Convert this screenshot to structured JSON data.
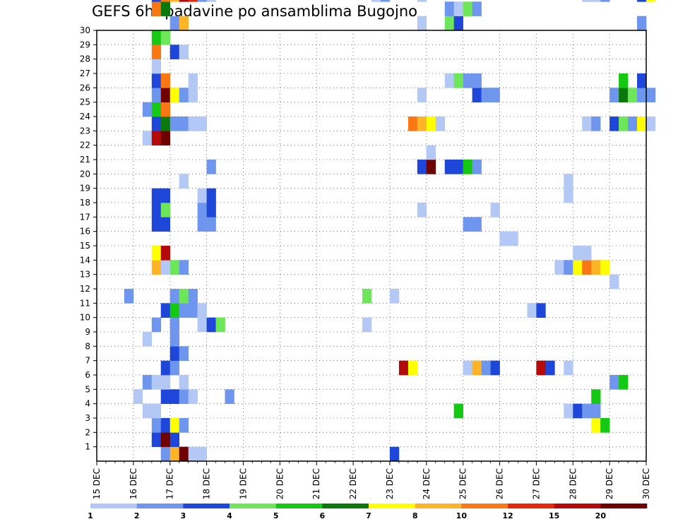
{
  "chart_data": {
    "type": "heatmap",
    "title": "GEFS 6hr padavine po ansamblima Bugojno",
    "xlabel": "",
    "ylabel": "",
    "x_tick_labels": [
      "15 DEC",
      "16 DEC",
      "17 DEC",
      "18 DEC",
      "19 DEC",
      "20 DEC",
      "21 DEC",
      "22 DEC",
      "23 DEC",
      "24 DEC",
      "25 DEC",
      "26 DEC",
      "27 DEC",
      "28 DEC",
      "29 DEC",
      "30 DEC"
    ],
    "y_tick_labels": [
      "1",
      "2",
      "3",
      "4",
      "5",
      "6",
      "7",
      "8",
      "9",
      "10",
      "11",
      "12",
      "13",
      "14",
      "15",
      "16",
      "17",
      "18",
      "19",
      "20",
      "21",
      "22",
      "23",
      "24",
      "25",
      "26",
      "27",
      "28",
      "29",
      "30"
    ],
    "grid": true,
    "colorbar": {
      "colors": [
        "#b4c8f5",
        "#6e96ee",
        "#1e46d8",
        "#6ee65a",
        "#14c814",
        "#0a780a",
        "#ffff00",
        "#ffb428",
        "#fa7814",
        "#e6280a",
        "#b40a0a",
        "#6e0000"
      ],
      "labels": [
        "1",
        "2",
        "3",
        "4",
        "5",
        "6",
        "7",
        "8",
        "10",
        "12",
        "15",
        "20"
      ]
    },
    "cells": [
      {
        "member": 0,
        "step": 7,
        "value": 2
      },
      {
        "member": 0,
        "step": 8,
        "value": 8
      },
      {
        "member": 0,
        "step": 9,
        "value": 20
      },
      {
        "member": 0,
        "step": 10,
        "value": 1
      },
      {
        "member": 0,
        "step": 11,
        "value": 1
      },
      {
        "member": 0,
        "step": 32,
        "value": 3
      },
      {
        "member": 1,
        "step": 6,
        "value": 3
      },
      {
        "member": 1,
        "step": 7,
        "value": 20
      },
      {
        "member": 1,
        "step": 8,
        "value": 3
      },
      {
        "member": 2,
        "step": 6,
        "value": 2
      },
      {
        "member": 2,
        "step": 7,
        "value": 3
      },
      {
        "member": 2,
        "step": 8,
        "value": 7
      },
      {
        "member": 2,
        "step": 9,
        "value": 2
      },
      {
        "member": 2,
        "step": 54,
        "value": 7
      },
      {
        "member": 2,
        "step": 55,
        "value": 5
      },
      {
        "member": 3,
        "step": 5,
        "value": 1
      },
      {
        "member": 3,
        "step": 6,
        "value": 1
      },
      {
        "member": 3,
        "step": 39,
        "value": 5
      },
      {
        "member": 3,
        "step": 51,
        "value": 1
      },
      {
        "member": 3,
        "step": 52,
        "value": 3
      },
      {
        "member": 3,
        "step": 53,
        "value": 2
      },
      {
        "member": 3,
        "step": 54,
        "value": 2
      },
      {
        "member": 4,
        "step": 4,
        "value": 1
      },
      {
        "member": 4,
        "step": 7,
        "value": 3
      },
      {
        "member": 4,
        "step": 8,
        "value": 3
      },
      {
        "member": 4,
        "step": 9,
        "value": 2
      },
      {
        "member": 4,
        "step": 10,
        "value": 1
      },
      {
        "member": 4,
        "step": 14,
        "value": 2
      },
      {
        "member": 4,
        "step": 54,
        "value": 5
      },
      {
        "member": 5,
        "step": 5,
        "value": 2
      },
      {
        "member": 5,
        "step": 6,
        "value": 1
      },
      {
        "member": 5,
        "step": 7,
        "value": 1
      },
      {
        "member": 5,
        "step": 9,
        "value": 1
      },
      {
        "member": 5,
        "step": 56,
        "value": 2
      },
      {
        "member": 5,
        "step": 57,
        "value": 5
      },
      {
        "member": 6,
        "step": 7,
        "value": 3
      },
      {
        "member": 6,
        "step": 8,
        "value": 2
      },
      {
        "member": 6,
        "step": 33,
        "value": 15
      },
      {
        "member": 6,
        "step": 34,
        "value": 7
      },
      {
        "member": 6,
        "step": 40,
        "value": 1
      },
      {
        "member": 6,
        "step": 41,
        "value": 8
      },
      {
        "member": 6,
        "step": 42,
        "value": 2
      },
      {
        "member": 6,
        "step": 43,
        "value": 3
      },
      {
        "member": 6,
        "step": 48,
        "value": 15
      },
      {
        "member": 6,
        "step": 49,
        "value": 3
      },
      {
        "member": 6,
        "step": 51,
        "value": 1
      },
      {
        "member": 7,
        "step": 8,
        "value": 3
      },
      {
        "member": 7,
        "step": 9,
        "value": 2
      },
      {
        "member": 8,
        "step": 5,
        "value": 1
      },
      {
        "member": 8,
        "step": 8,
        "value": 2
      },
      {
        "member": 9,
        "step": 6,
        "value": 2
      },
      {
        "member": 9,
        "step": 8,
        "value": 2
      },
      {
        "member": 9,
        "step": 11,
        "value": 1
      },
      {
        "member": 9,
        "step": 12,
        "value": 3
      },
      {
        "member": 9,
        "step": 13,
        "value": 4
      },
      {
        "member": 9,
        "step": 29,
        "value": 1
      },
      {
        "member": 10,
        "step": 7,
        "value": 3
      },
      {
        "member": 10,
        "step": 8,
        "value": 5
      },
      {
        "member": 10,
        "step": 9,
        "value": 2
      },
      {
        "member": 10,
        "step": 10,
        "value": 2
      },
      {
        "member": 10,
        "step": 11,
        "value": 1
      },
      {
        "member": 10,
        "step": 47,
        "value": 1
      },
      {
        "member": 10,
        "step": 48,
        "value": 3
      },
      {
        "member": 11,
        "step": 3,
        "value": 2
      },
      {
        "member": 11,
        "step": 8,
        "value": 2
      },
      {
        "member": 11,
        "step": 9,
        "value": 4
      },
      {
        "member": 11,
        "step": 10,
        "value": 2
      },
      {
        "member": 11,
        "step": 29,
        "value": 4
      },
      {
        "member": 11,
        "step": 32,
        "value": 1
      },
      {
        "member": 12,
        "step": 56,
        "value": 1
      },
      {
        "member": 13,
        "step": 6,
        "value": 8
      },
      {
        "member": 13,
        "step": 7,
        "value": 1
      },
      {
        "member": 13,
        "step": 8,
        "value": 4
      },
      {
        "member": 13,
        "step": 9,
        "value": 2
      },
      {
        "member": 13,
        "step": 50,
        "value": 1
      },
      {
        "member": 13,
        "step": 51,
        "value": 2
      },
      {
        "member": 13,
        "step": 52,
        "value": 7
      },
      {
        "member": 13,
        "step": 53,
        "value": 10
      },
      {
        "member": 13,
        "step": 54,
        "value": 8
      },
      {
        "member": 13,
        "step": 55,
        "value": 7
      },
      {
        "member": 14,
        "step": 6,
        "value": 7
      },
      {
        "member": 14,
        "step": 7,
        "value": 15
      },
      {
        "member": 14,
        "step": 52,
        "value": 1
      },
      {
        "member": 14,
        "step": 53,
        "value": 1
      },
      {
        "member": 15,
        "step": 44,
        "value": 1
      },
      {
        "member": 15,
        "step": 45,
        "value": 1
      },
      {
        "member": 16,
        "step": 6,
        "value": 3
      },
      {
        "member": 16,
        "step": 7,
        "value": 3
      },
      {
        "member": 16,
        "step": 11,
        "value": 2
      },
      {
        "member": 16,
        "step": 12,
        "value": 2
      },
      {
        "member": 16,
        "step": 40,
        "value": 2
      },
      {
        "member": 16,
        "step": 41,
        "value": 2
      },
      {
        "member": 17,
        "step": 6,
        "value": 3
      },
      {
        "member": 17,
        "step": 7,
        "value": 4
      },
      {
        "member": 17,
        "step": 11,
        "value": 2
      },
      {
        "member": 17,
        "step": 12,
        "value": 3
      },
      {
        "member": 17,
        "step": 35,
        "value": 1
      },
      {
        "member": 17,
        "step": 43,
        "value": 1
      },
      {
        "member": 18,
        "step": 6,
        "value": 3
      },
      {
        "member": 18,
        "step": 7,
        "value": 3
      },
      {
        "member": 18,
        "step": 11,
        "value": 1
      },
      {
        "member": 18,
        "step": 12,
        "value": 3
      },
      {
        "member": 18,
        "step": 51,
        "value": 1
      },
      {
        "member": 19,
        "step": 9,
        "value": 1
      },
      {
        "member": 19,
        "step": 51,
        "value": 1
      },
      {
        "member": 20,
        "step": 12,
        "value": 2
      },
      {
        "member": 20,
        "step": 35,
        "value": 3
      },
      {
        "member": 20,
        "step": 36,
        "value": 20
      },
      {
        "member": 20,
        "step": 38,
        "value": 3
      },
      {
        "member": 20,
        "step": 39,
        "value": 3
      },
      {
        "member": 20,
        "step": 40,
        "value": 5
      },
      {
        "member": 20,
        "step": 41,
        "value": 2
      },
      {
        "member": 21,
        "step": 36,
        "value": 1
      },
      {
        "member": 22,
        "step": 5,
        "value": 1
      },
      {
        "member": 22,
        "step": 6,
        "value": 15
      },
      {
        "member": 22,
        "step": 7,
        "value": 20
      },
      {
        "member": 23,
        "step": 6,
        "value": 3
      },
      {
        "member": 23,
        "step": 7,
        "value": 6
      },
      {
        "member": 23,
        "step": 8,
        "value": 2
      },
      {
        "member": 23,
        "step": 9,
        "value": 2
      },
      {
        "member": 23,
        "step": 10,
        "value": 1
      },
      {
        "member": 23,
        "step": 11,
        "value": 1
      },
      {
        "member": 23,
        "step": 34,
        "value": 10
      },
      {
        "member": 23,
        "step": 35,
        "value": 8
      },
      {
        "member": 23,
        "step": 36,
        "value": 7
      },
      {
        "member": 23,
        "step": 37,
        "value": 1
      },
      {
        "member": 23,
        "step": 53,
        "value": 1
      },
      {
        "member": 23,
        "step": 54,
        "value": 2
      },
      {
        "member": 23,
        "step": 56,
        "value": 3
      },
      {
        "member": 23,
        "step": 57,
        "value": 4
      },
      {
        "member": 23,
        "step": 58,
        "value": 2
      },
      {
        "member": 23,
        "step": 59,
        "value": 7
      },
      {
        "member": 23,
        "step": 60,
        "value": 1
      },
      {
        "member": 24,
        "step": 5,
        "value": 2
      },
      {
        "member": 24,
        "step": 6,
        "value": 5
      },
      {
        "member": 24,
        "step": 7,
        "value": 10
      },
      {
        "member": 25,
        "step": 6,
        "value": 2
      },
      {
        "member": 25,
        "step": 7,
        "value": 20
      },
      {
        "member": 25,
        "step": 8,
        "value": 7
      },
      {
        "member": 25,
        "step": 9,
        "value": 2
      },
      {
        "member": 25,
        "step": 10,
        "value": 1
      },
      {
        "member": 25,
        "step": 35,
        "value": 1
      },
      {
        "member": 25,
        "step": 41,
        "value": 3
      },
      {
        "member": 25,
        "step": 42,
        "value": 2
      },
      {
        "member": 25,
        "step": 43,
        "value": 2
      },
      {
        "member": 25,
        "step": 56,
        "value": 2
      },
      {
        "member": 25,
        "step": 57,
        "value": 6
      },
      {
        "member": 25,
        "step": 58,
        "value": 4
      },
      {
        "member": 25,
        "step": 59,
        "value": 2
      },
      {
        "member": 25,
        "step": 60,
        "value": 2
      },
      {
        "member": 26,
        "step": 6,
        "value": 3
      },
      {
        "member": 26,
        "step": 7,
        "value": 10
      },
      {
        "member": 26,
        "step": 10,
        "value": 1
      },
      {
        "member": 26,
        "step": 38,
        "value": 1
      },
      {
        "member": 26,
        "step": 39,
        "value": 4
      },
      {
        "member": 26,
        "step": 40,
        "value": 2
      },
      {
        "member": 26,
        "step": 41,
        "value": 2
      },
      {
        "member": 26,
        "step": 57,
        "value": 5
      },
      {
        "member": 26,
        "step": 59,
        "value": 3
      },
      {
        "member": 27,
        "step": 6,
        "value": 1
      },
      {
        "member": 28,
        "step": 6,
        "value": 10
      },
      {
        "member": 28,
        "step": 8,
        "value": 3
      },
      {
        "member": 28,
        "step": 9,
        "value": 1
      },
      {
        "member": 29,
        "step": 6,
        "value": 5
      },
      {
        "member": 29,
        "step": 7,
        "value": 4
      },
      {
        "member": 30,
        "step": 8,
        "value": 2
      },
      {
        "member": 30,
        "step": 9,
        "value": 8
      },
      {
        "member": 30,
        "step": 35,
        "value": 1
      },
      {
        "member": 30,
        "step": 38,
        "value": 4
      },
      {
        "member": 30,
        "step": 39,
        "value": 3
      },
      {
        "member": 30,
        "step": 59,
        "value": 2
      },
      {
        "member": 31,
        "step": 6,
        "value": 10
      },
      {
        "member": 31,
        "step": 7,
        "value": 6
      },
      {
        "member": 31,
        "step": 38,
        "value": 2
      },
      {
        "member": 31,
        "step": 39,
        "value": 1
      },
      {
        "member": 31,
        "step": 40,
        "value": 4
      },
      {
        "member": 31,
        "step": 41,
        "value": 2
      },
      {
        "member": 32,
        "step": 6,
        "value": 3
      },
      {
        "member": 32,
        "step": 7,
        "value": 10
      },
      {
        "member": 32,
        "step": 8,
        "value": 8
      },
      {
        "member": 32,
        "step": 9,
        "value": 15
      },
      {
        "member": 32,
        "step": 10,
        "value": 12
      },
      {
        "member": 32,
        "step": 11,
        "value": 2
      },
      {
        "member": 32,
        "step": 12,
        "value": 1
      },
      {
        "member": 32,
        "step": 30,
        "value": 1
      },
      {
        "member": 32,
        "step": 31,
        "value": 2
      },
      {
        "member": 32,
        "step": 35,
        "value": 1
      },
      {
        "member": 32,
        "step": 53,
        "value": 1
      },
      {
        "member": 32,
        "step": 54,
        "value": 1
      },
      {
        "member": 32,
        "step": 55,
        "value": 2
      },
      {
        "member": 32,
        "step": 59,
        "value": 3
      },
      {
        "member": 32,
        "step": 60,
        "value": 7
      },
      {
        "member": 33,
        "step": 9,
        "value": 4
      },
      {
        "member": 33,
        "step": 10,
        "value": 1
      },
      {
        "member": 33,
        "step": 29,
        "value": 4
      },
      {
        "member": 33,
        "step": 30,
        "value": 1
      },
      {
        "member": 33,
        "step": 53,
        "value": 1
      },
      {
        "member": 33,
        "step": 54,
        "value": 15
      },
      {
        "member": 33,
        "step": 55,
        "value": 4
      },
      {
        "member": 33,
        "step": 56,
        "value": 1
      },
      {
        "member": 33,
        "step": 57,
        "value": 1
      }
    ]
  }
}
